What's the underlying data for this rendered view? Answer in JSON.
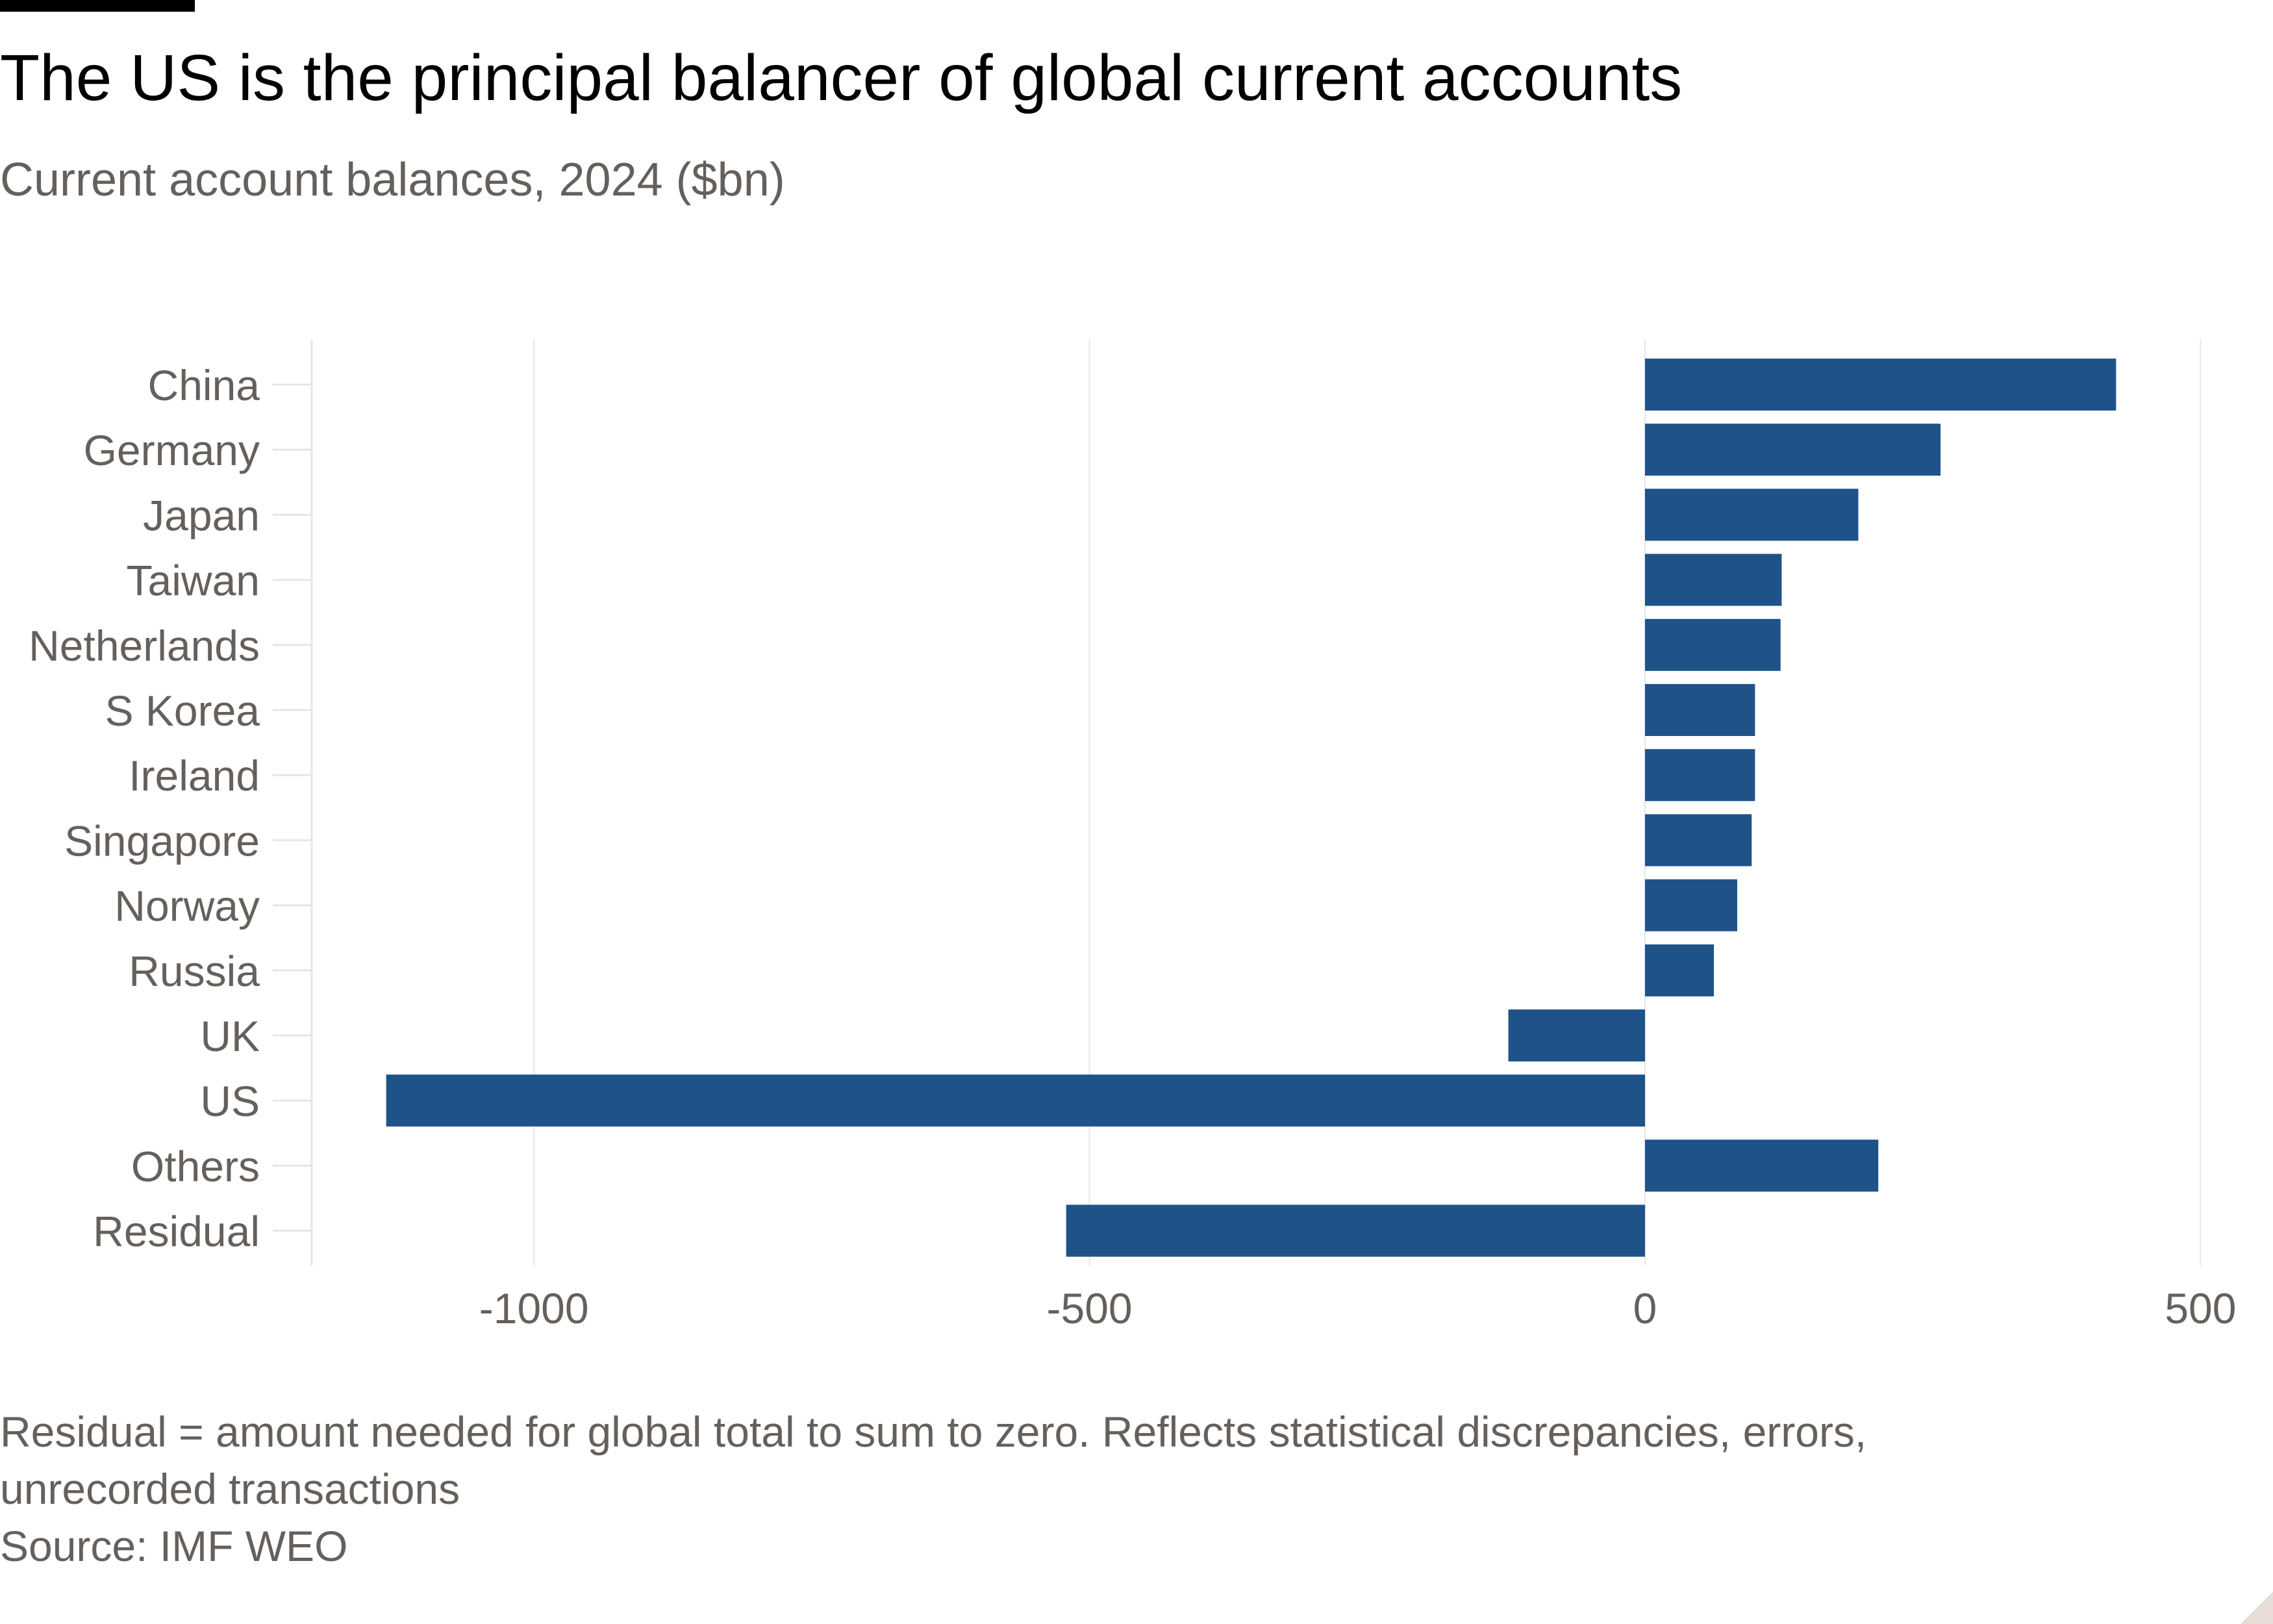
{
  "header": {
    "title": "The US is the principal balancer of global current accounts",
    "subtitle": "Current account balances, 2024 ($bn)"
  },
  "footer": {
    "note_line1": "Residual = amount needed for global total to sum to zero. Reflects statistical discrepancies, errors,",
    "note_line2": "unrecorded transactions",
    "source": "Source: IMF WEO"
  },
  "colors": {
    "bar": "#1f5289",
    "grid": "#e6e6e6",
    "tick_text": "#66605c"
  },
  "chart_data": {
    "type": "bar",
    "orientation": "horizontal",
    "title": "The US is the principal balancer of global current accounts",
    "subtitle": "Current account balances, 2024 ($bn)",
    "categories": [
      "China",
      "Germany",
      "Japan",
      "Taiwan",
      "Netherlands",
      "S Korea",
      "Ireland",
      "Singapore",
      "Norway",
      "Russia",
      "UK",
      "US",
      "Others",
      "Residual"
    ],
    "values": [
      424,
      266,
      192,
      123,
      122,
      99,
      99,
      96,
      83,
      62,
      -123,
      -1133,
      210,
      -521
    ],
    "xlim": [
      -1200,
      500
    ],
    "xticks": [
      -1000,
      -500,
      0,
      500
    ],
    "xtick_labels": [
      "-1000",
      "-500",
      "0",
      "500"
    ],
    "grid": true,
    "legend": "none"
  }
}
